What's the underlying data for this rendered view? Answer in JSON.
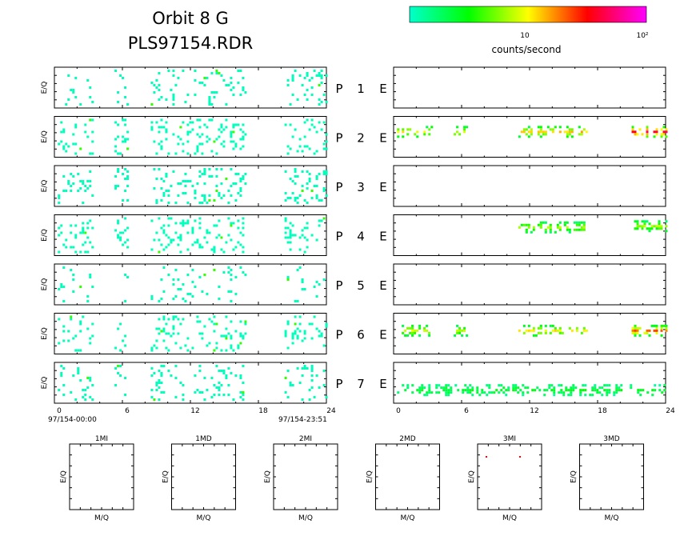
{
  "chart_data": {
    "type": "heatmap",
    "title": "Orbit  8  G",
    "subtitle": "PLS97154.RDR",
    "colorbar": {
      "label": "counts/second",
      "tick_labels": [
        "10",
        "10²"
      ],
      "scale": "log",
      "range": [
        1,
        120
      ],
      "colors": [
        "#00ffcc",
        "#00ff00",
        "#ffff00",
        "#ff0000",
        "#ff00ff"
      ]
    },
    "x_axis": {
      "ticks": [
        0,
        6,
        12,
        18,
        24
      ],
      "range": [
        0,
        24
      ],
      "start_label": "97/154-00:00",
      "end_label": "97/154-23:51"
    },
    "ylabel": "E/Q",
    "channels": [
      {
        "p": "P",
        "num": "1",
        "e": "E"
      },
      {
        "p": "P",
        "num": "2",
        "e": "E"
      },
      {
        "p": "P",
        "num": "3",
        "e": "E"
      },
      {
        "p": "P",
        "num": "4",
        "e": "E"
      },
      {
        "p": "P",
        "num": "5",
        "e": "E"
      },
      {
        "p": "P",
        "num": "6",
        "e": "E"
      },
      {
        "p": "P",
        "num": "7",
        "e": "E"
      }
    ],
    "left_activity": {
      "segments": [
        [
          0.3,
          3.3
        ],
        [
          5.3,
          6.5
        ],
        [
          8.5,
          16.8
        ],
        [
          20.3,
          24
        ]
      ],
      "density": [
        0.09,
        0.13,
        0.14,
        0.13,
        0.07,
        0.13,
        0.12
      ]
    },
    "right_activity": [
      {
        "bands": []
      },
      {
        "bands": [
          {
            "x": [
              0.3,
              3.3
            ],
            "y": 0.65,
            "level": 0.45
          },
          {
            "x": [
              5.3,
              6.5
            ],
            "y": 0.65,
            "level": 0.4
          },
          {
            "x": [
              11,
              17
            ],
            "y": 0.65,
            "level": 0.5
          },
          {
            "x": [
              21,
              24
            ],
            "y": 0.65,
            "level": 0.75
          }
        ]
      },
      {
        "bands": []
      },
      {
        "bands": [
          {
            "x": [
              11,
              17
            ],
            "y": 0.72,
            "level": 0.35
          },
          {
            "x": [
              21,
              24
            ],
            "y": 0.75,
            "level": 0.35
          }
        ]
      },
      {
        "bands": []
      },
      {
        "bands": [
          {
            "x": [
              0.5,
              3.3
            ],
            "y": 0.6,
            "level": 0.42
          },
          {
            "x": [
              5.3,
              6.5
            ],
            "y": 0.6,
            "level": 0.38
          },
          {
            "x": [
              11,
              17
            ],
            "y": 0.6,
            "level": 0.45
          },
          {
            "x": [
              21,
              24
            ],
            "y": 0.6,
            "level": 0.6
          }
        ]
      },
      {
        "bands": [
          {
            "x": [
              0.3,
              24
            ],
            "y": 0.35,
            "level": 0.15
          }
        ]
      }
    ],
    "mass_panels": [
      {
        "title": "1MI",
        "xlabel": "M/Q",
        "ylabel": "E/Q"
      },
      {
        "title": "1MD",
        "xlabel": "M/Q",
        "ylabel": "E/Q"
      },
      {
        "title": "2MI",
        "xlabel": "M/Q",
        "ylabel": "E/Q"
      },
      {
        "title": "2MD",
        "xlabel": "M/Q",
        "ylabel": "E/Q"
      },
      {
        "title": "3MI",
        "xlabel": "M/Q",
        "ylabel": "E/Q"
      },
      {
        "title": "3MD",
        "xlabel": "M/Q",
        "ylabel": "E/Q"
      }
    ]
  }
}
